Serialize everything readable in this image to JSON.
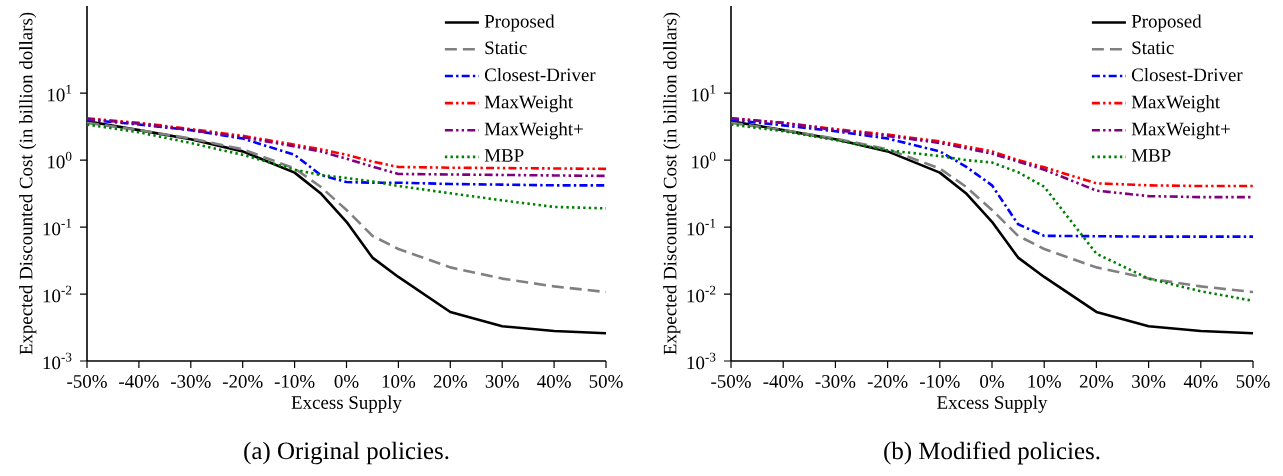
{
  "chart_data": [
    {
      "type": "line",
      "xlabel": "Excess Supply",
      "ylabel": "Expected Discounted Cost (in billion dollars)",
      "log": true,
      "legend": "top right",
      "x": [
        -50,
        -40,
        -30,
        -20,
        -10,
        -5,
        0,
        5,
        10,
        20,
        30,
        40,
        50
      ],
      "xlim": [
        -50,
        50
      ],
      "ylim": [
        0.001,
        200
      ],
      "xticks": [
        {
          "value": -50,
          "label": "-50%"
        },
        {
          "value": -40,
          "label": "-40%"
        },
        {
          "value": -30,
          "label": "-30%"
        },
        {
          "value": -20,
          "label": "-20%"
        },
        {
          "value": -10,
          "label": "-10%"
        },
        {
          "value": 0,
          "label": "0%"
        },
        {
          "value": 10,
          "label": "10%"
        },
        {
          "value": 20,
          "label": "20%"
        },
        {
          "value": 30,
          "label": "30%"
        },
        {
          "value": 40,
          "label": "40%"
        },
        {
          "value": 50,
          "label": "50%"
        }
      ],
      "yticks": [
        {
          "value": 0.001,
          "label": "10$^{-3}$"
        },
        {
          "value": 0.01,
          "label": "10$^{-2}$"
        },
        {
          "value": 0.1,
          "label": "10$^{-1}$"
        },
        {
          "value": 1,
          "label": "10$^{0}$"
        },
        {
          "value": 10,
          "label": "10$^{1}$"
        }
      ],
      "series": [
        {
          "name": "Proposed",
          "color": "#000000",
          "line_style": "solid",
          "values": [
            3.8,
            2.8,
            2.05,
            1.35,
            0.65,
            0.32,
            0.12,
            0.035,
            0.018,
            0.0054,
            0.0033,
            0.0028,
            0.0026
          ]
        },
        {
          "name": "Static",
          "color": "#808080",
          "line_style": "dashed",
          "values": [
            3.6,
            2.8,
            2.1,
            1.45,
            0.75,
            0.4,
            0.18,
            0.074,
            0.047,
            0.025,
            0.017,
            0.013,
            0.0107
          ]
        },
        {
          "name": "Closest-Driver",
          "color": "#0000ff",
          "line_style": "dashdot",
          "values": [
            4.0,
            3.4,
            2.8,
            2.1,
            1.2,
            0.6,
            0.47,
            0.46,
            0.46,
            0.44,
            0.43,
            0.42,
            0.42
          ]
        },
        {
          "name": "MaxWeight",
          "color": "#ff0000",
          "line_style": "dashdotdot",
          "values": [
            4.2,
            3.6,
            2.9,
            2.3,
            1.7,
            1.45,
            1.2,
            0.95,
            0.79,
            0.77,
            0.76,
            0.75,
            0.74
          ]
        },
        {
          "name": "MaxWeight+",
          "color": "#800080",
          "line_style": "dashdotdot",
          "values": [
            4.1,
            3.5,
            2.8,
            2.2,
            1.6,
            1.35,
            1.05,
            0.8,
            0.62,
            0.61,
            0.6,
            0.59,
            0.58
          ]
        },
        {
          "name": "MBP",
          "color": "#008000",
          "line_style": "dotted",
          "values": [
            3.4,
            2.6,
            1.8,
            1.2,
            0.72,
            0.6,
            0.54,
            0.48,
            0.41,
            0.32,
            0.25,
            0.2,
            0.19
          ]
        }
      ],
      "annotations": [
        "(a) Original policies."
      ]
    },
    {
      "type": "line",
      "xlabel": "Excess Supply",
      "ylabel": "Expected Discounted Cost (in billion dollars)",
      "log": true,
      "legend": "top right",
      "x": [
        -50,
        -40,
        -30,
        -20,
        -10,
        -5,
        0,
        5,
        10,
        20,
        30,
        40,
        50
      ],
      "xlim": [
        -50,
        50
      ],
      "ylim": [
        0.001,
        200
      ],
      "xticks": [
        {
          "value": -50,
          "label": "-50%"
        },
        {
          "value": -40,
          "label": "-40%"
        },
        {
          "value": -30,
          "label": "-30%"
        },
        {
          "value": -20,
          "label": "-20%"
        },
        {
          "value": -10,
          "label": "-10%"
        },
        {
          "value": 0,
          "label": "0%"
        },
        {
          "value": 10,
          "label": "10%"
        },
        {
          "value": 20,
          "label": "20%"
        },
        {
          "value": 30,
          "label": "30%"
        },
        {
          "value": 40,
          "label": "40%"
        },
        {
          "value": 50,
          "label": "50%"
        }
      ],
      "yticks": [
        {
          "value": 0.001,
          "label": "10$^{-3}$"
        },
        {
          "value": 0.01,
          "label": "10$^{-2}$"
        },
        {
          "value": 0.1,
          "label": "10$^{-1}$"
        },
        {
          "value": 1,
          "label": "10$^{0}$"
        },
        {
          "value": 10,
          "label": "10$^{1}$"
        }
      ],
      "series": [
        {
          "name": "Proposed",
          "color": "#000000",
          "line_style": "solid",
          "values": [
            3.8,
            2.8,
            2.05,
            1.35,
            0.65,
            0.32,
            0.12,
            0.035,
            0.018,
            0.0054,
            0.0033,
            0.0028,
            0.0026
          ]
        },
        {
          "name": "Static",
          "color": "#808080",
          "line_style": "dashed",
          "values": [
            3.6,
            2.8,
            2.1,
            1.45,
            0.75,
            0.4,
            0.18,
            0.074,
            0.047,
            0.025,
            0.017,
            0.013,
            0.0107
          ]
        },
        {
          "name": "Closest-Driver",
          "color": "#0000ff",
          "line_style": "dashdot",
          "values": [
            4.0,
            3.3,
            2.7,
            2.1,
            1.35,
            0.8,
            0.42,
            0.11,
            0.074,
            0.073,
            0.072,
            0.072,
            0.072
          ]
        },
        {
          "name": "MaxWeight",
          "color": "#ff0000",
          "line_style": "dashdotdot",
          "values": [
            4.2,
            3.6,
            2.9,
            2.4,
            1.9,
            1.6,
            1.35,
            1.0,
            0.78,
            0.45,
            0.42,
            0.41,
            0.41
          ]
        },
        {
          "name": "MaxWeight+",
          "color": "#800080",
          "line_style": "dashdotdot",
          "values": [
            4.2,
            3.6,
            2.8,
            2.3,
            1.8,
            1.5,
            1.25,
            0.95,
            0.72,
            0.35,
            0.29,
            0.28,
            0.28
          ]
        },
        {
          "name": "MBP",
          "color": "#008000",
          "line_style": "dotted",
          "values": [
            3.4,
            2.7,
            2.0,
            1.4,
            1.15,
            1.0,
            0.92,
            0.66,
            0.4,
            0.04,
            0.017,
            0.011,
            0.0079
          ]
        }
      ],
      "annotations": [
        "(b) Modified policies."
      ]
    }
  ]
}
